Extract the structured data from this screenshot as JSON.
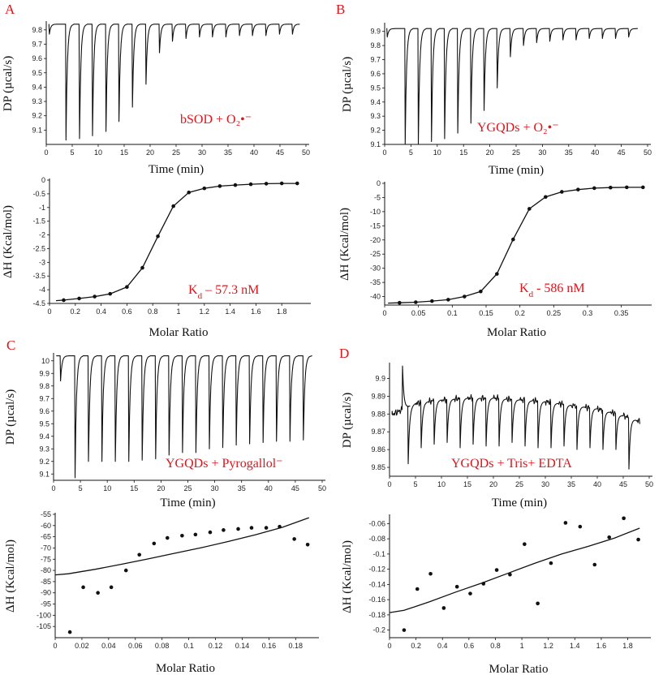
{
  "panels": [
    {
      "id": "A",
      "label": "A"
    },
    {
      "id": "B",
      "label": "B"
    },
    {
      "id": "C",
      "label": "C"
    },
    {
      "id": "D",
      "label": "D"
    }
  ],
  "chart_data": [
    {
      "id": "A-top",
      "type": "line",
      "ylabel": "DP (µcal/s)",
      "xlabel": "Time (min)",
      "annotation": "bSOD + O₂•⁻",
      "xlim": [
        0,
        50
      ],
      "ylim": [
        9.0,
        9.85
      ],
      "xticks": [
        0,
        5,
        10,
        15,
        20,
        25,
        30,
        35,
        40,
        45,
        50
      ],
      "yticks": [
        9.1,
        9.2,
        9.3,
        9.4,
        9.5,
        9.6,
        9.7,
        9.8
      ],
      "baseline": 9.84,
      "peaks": [
        {
          "t": 0.6,
          "min": 9.77
        },
        {
          "t": 3.8,
          "min": 9.03
        },
        {
          "t": 6.4,
          "min": 9.04
        },
        {
          "t": 8.9,
          "min": 9.06
        },
        {
          "t": 11.5,
          "min": 9.09
        },
        {
          "t": 14.0,
          "min": 9.16
        },
        {
          "t": 16.6,
          "min": 9.26
        },
        {
          "t": 19.2,
          "min": 9.42
        },
        {
          "t": 21.8,
          "min": 9.64
        },
        {
          "t": 24.3,
          "min": 9.72
        },
        {
          "t": 26.9,
          "min": 9.74
        },
        {
          "t": 29.5,
          "min": 9.75
        },
        {
          "t": 32.0,
          "min": 9.75
        },
        {
          "t": 34.6,
          "min": 9.75
        },
        {
          "t": 37.2,
          "min": 9.76
        },
        {
          "t": 39.7,
          "min": 9.76
        },
        {
          "t": 42.3,
          "min": 9.76
        },
        {
          "t": 44.9,
          "min": 9.77
        },
        {
          "t": 47.4,
          "min": 9.77
        }
      ]
    },
    {
      "id": "A-bottom",
      "type": "scatter",
      "ylabel": "ΔH (Kcal/mol)",
      "xlabel": "Molar Ratio",
      "annotation": "K_d – 57.3 nM",
      "kd_main": "K",
      "kd_sub": "d",
      "kd_value": " – 57.3 nM",
      "xlim": [
        0,
        2
      ],
      "ylim": [
        -4.5,
        0
      ],
      "xticks": [
        0,
        0.2,
        0.4,
        0.6,
        0.8,
        1,
        1.2,
        1.4,
        1.6,
        1.8
      ],
      "yticks": [
        0,
        -0.5,
        -1,
        -1.5,
        -2,
        -2.5,
        -3,
        -3.5,
        -4,
        -4.5
      ],
      "points": {
        "x": [
          0.11,
          0.23,
          0.35,
          0.47,
          0.6,
          0.72,
          0.84,
          0.96,
          1.08,
          1.2,
          1.32,
          1.44,
          1.56,
          1.68,
          1.8,
          1.92
        ],
        "y": [
          -4.38,
          -4.32,
          -4.25,
          -4.15,
          -3.9,
          -3.2,
          -2.05,
          -0.95,
          -0.45,
          -0.3,
          -0.22,
          -0.18,
          -0.15,
          -0.13,
          -0.12,
          -0.12
        ]
      },
      "fit": {
        "x": [
          0.05,
          0.11,
          0.23,
          0.35,
          0.47,
          0.6,
          0.72,
          0.84,
          0.96,
          1.08,
          1.2,
          1.32,
          1.44,
          1.56,
          1.68,
          1.8,
          1.92
        ],
        "y": [
          -4.4,
          -4.38,
          -4.32,
          -4.25,
          -4.15,
          -3.9,
          -3.2,
          -2.05,
          -0.95,
          -0.45,
          -0.3,
          -0.22,
          -0.18,
          -0.15,
          -0.13,
          -0.12,
          -0.12
        ]
      }
    },
    {
      "id": "B-top",
      "type": "line",
      "ylabel": "DP (µcal/s)",
      "xlabel": "Time (min)",
      "annotation": "YGQDs + O₂•⁻",
      "xlim": [
        0,
        50
      ],
      "ylim": [
        9.1,
        9.95
      ],
      "xticks": [
        0,
        5,
        10,
        15,
        20,
        25,
        30,
        35,
        40,
        45,
        50
      ],
      "yticks": [
        9.1,
        9.2,
        9.3,
        9.4,
        9.5,
        9.6,
        9.7,
        9.8,
        9.9
      ],
      "baseline": 9.92,
      "peaks": [
        {
          "t": 0.5,
          "min": 9.86
        },
        {
          "t": 3.9,
          "min": 9.1
        },
        {
          "t": 6.4,
          "min": 9.1
        },
        {
          "t": 8.9,
          "min": 9.12
        },
        {
          "t": 11.4,
          "min": 9.14
        },
        {
          "t": 13.9,
          "min": 9.18
        },
        {
          "t": 16.4,
          "min": 9.25
        },
        {
          "t": 18.9,
          "min": 9.34
        },
        {
          "t": 21.4,
          "min": 9.5
        },
        {
          "t": 23.9,
          "min": 9.72
        },
        {
          "t": 26.4,
          "min": 9.8
        },
        {
          "t": 28.9,
          "min": 9.82
        },
        {
          "t": 31.4,
          "min": 9.83
        },
        {
          "t": 33.9,
          "min": 9.84
        },
        {
          "t": 36.4,
          "min": 9.84
        },
        {
          "t": 38.9,
          "min": 9.85
        },
        {
          "t": 41.4,
          "min": 9.85
        },
        {
          "t": 43.9,
          "min": 9.85
        },
        {
          "t": 46.4,
          "min": 9.86
        }
      ]
    },
    {
      "id": "B-bottom",
      "type": "scatter",
      "ylabel": "ΔH (Kcal/mol)",
      "xlabel": "Molar Ratio",
      "annotation": "K_d - 586 nM",
      "kd_main": "K",
      "kd_sub": "d",
      "kd_value": " - 586 nM",
      "xlim": [
        0,
        0.39
      ],
      "ylim": [
        -43,
        0
      ],
      "xticks": [
        0,
        0.05,
        0.1,
        0.15,
        0.2,
        0.25,
        0.3,
        0.35
      ],
      "yticks": [
        0,
        -5,
        -10,
        -15,
        -20,
        -25,
        -30,
        -35,
        -40
      ],
      "points": {
        "x": [
          0.022,
          0.046,
          0.07,
          0.094,
          0.118,
          0.142,
          0.166,
          0.19,
          0.214,
          0.238,
          0.262,
          0.286,
          0.31,
          0.334,
          0.358,
          0.382
        ],
        "y": [
          -42.2,
          -42.0,
          -41.6,
          -41.1,
          -40.0,
          -38.2,
          -32.0,
          -19.8,
          -9.0,
          -4.8,
          -3.0,
          -2.2,
          -1.7,
          -1.5,
          -1.4,
          -1.4
        ]
      },
      "fit": {
        "x": [
          0.005,
          0.022,
          0.046,
          0.07,
          0.094,
          0.118,
          0.142,
          0.166,
          0.19,
          0.214,
          0.238,
          0.262,
          0.286,
          0.31,
          0.334,
          0.358,
          0.382
        ],
        "y": [
          -42.3,
          -42.2,
          -42.0,
          -41.6,
          -41.1,
          -40.0,
          -38.2,
          -32.0,
          -19.8,
          -9.0,
          -4.8,
          -3.0,
          -2.2,
          -1.7,
          -1.5,
          -1.4,
          -1.4
        ]
      }
    },
    {
      "id": "C-top",
      "type": "line",
      "ylabel": "DP (µcal/s)",
      "xlabel": "Time (min)",
      "annotation": "YGQDs + Pyrogallol⁻",
      "xlim": [
        0,
        50
      ],
      "ylim": [
        9.05,
        10.05
      ],
      "xticks": [
        0,
        5,
        10,
        15,
        20,
        25,
        30,
        35,
        40,
        45,
        50
      ],
      "yticks": [
        9.1,
        9.2,
        9.3,
        9.4,
        9.5,
        9.6,
        9.7,
        9.8,
        9.9,
        10
      ],
      "baseline": 10.04,
      "peaks": [
        {
          "t": 1.3,
          "min": 9.84
        },
        {
          "t": 4.0,
          "min": 9.07
        },
        {
          "t": 6.5,
          "min": 9.2
        },
        {
          "t": 9.0,
          "min": 9.2
        },
        {
          "t": 11.5,
          "min": 9.2
        },
        {
          "t": 14.0,
          "min": 9.2
        },
        {
          "t": 16.5,
          "min": 9.21
        },
        {
          "t": 19.0,
          "min": 9.22
        },
        {
          "t": 21.5,
          "min": 9.25
        },
        {
          "t": 24.0,
          "min": 9.27
        },
        {
          "t": 26.5,
          "min": 9.27
        },
        {
          "t": 29.0,
          "min": 9.3
        },
        {
          "t": 31.5,
          "min": 9.31
        },
        {
          "t": 34.0,
          "min": 9.33
        },
        {
          "t": 36.5,
          "min": 9.34
        },
        {
          "t": 39.0,
          "min": 9.35
        },
        {
          "t": 41.5,
          "min": 9.36
        },
        {
          "t": 44.0,
          "min": 9.36
        },
        {
          "t": 46.5,
          "min": 9.37
        }
      ]
    },
    {
      "id": "C-bottom",
      "type": "scatter",
      "ylabel": "ΔH (Kcal/mol)",
      "xlabel": "Molar Ratio",
      "xlim": [
        0,
        0.195
      ],
      "ylim": [
        -110,
        -55
      ],
      "xticks": [
        0,
        0.02,
        0.04,
        0.06,
        0.08,
        0.1,
        0.12,
        0.14,
        0.16,
        0.18
      ],
      "yticks": [
        -55,
        -60,
        -65,
        -70,
        -75,
        -80,
        -85,
        -90,
        -95,
        -100,
        -105
      ],
      "points": {
        "x": [
          0.011,
          0.021,
          0.032,
          0.042,
          0.053,
          0.063,
          0.074,
          0.084,
          0.095,
          0.105,
          0.116,
          0.126,
          0.137,
          0.147,
          0.158,
          0.168,
          0.179,
          0.189
        ],
        "y": [
          -107.5,
          -87.5,
          -90,
          -87.5,
          -80,
          -73,
          -68,
          -65.5,
          -64.5,
          -64,
          -63,
          -62,
          -61.5,
          -61,
          -61,
          -60.5,
          -66,
          -68.5
        ]
      },
      "fit": {
        "x": [
          0,
          0.01,
          0.03,
          0.05,
          0.07,
          0.09,
          0.11,
          0.13,
          0.15,
          0.17,
          0.19
        ],
        "y": [
          -82,
          -81.5,
          -79.5,
          -77.2,
          -74.8,
          -72.3,
          -69.8,
          -67.0,
          -64.1,
          -60.8,
          -56.5
        ]
      }
    },
    {
      "id": "D-top",
      "type": "line",
      "ylabel": "DP (µcal/s)",
      "xlabel": "Time (min)",
      "annotation": "YGQDs + Tris+ EDTA",
      "xlim": [
        0,
        50
      ],
      "ylim": [
        9.845,
        9.908
      ],
      "xticks": [
        0,
        5,
        10,
        15,
        20,
        25,
        30,
        35,
        40,
        45,
        50
      ],
      "yticks": [
        9.85,
        9.86,
        9.87,
        9.88,
        9.89,
        9.9
      ],
      "baseline_points": {
        "t": [
          0,
          5,
          10,
          15,
          20,
          25,
          30,
          35,
          40,
          45,
          48
        ],
        "v": [
          9.879,
          9.886,
          9.888,
          9.889,
          9.889,
          9.888,
          9.887,
          9.885,
          9.883,
          9.879,
          9.876
        ]
      },
      "peaks": [
        {
          "t": 2.5,
          "min": 9.907,
          "up": true
        },
        {
          "t": 3.6,
          "min": 9.852
        },
        {
          "t": 6.1,
          "min": 9.861
        },
        {
          "t": 8.6,
          "min": 9.863
        },
        {
          "t": 11.1,
          "min": 9.864
        },
        {
          "t": 13.6,
          "min": 9.861
        },
        {
          "t": 16.1,
          "min": 9.863
        },
        {
          "t": 18.6,
          "min": 9.862
        },
        {
          "t": 21.1,
          "min": 9.862
        },
        {
          "t": 23.6,
          "min": 9.864
        },
        {
          "t": 26.1,
          "min": 9.862
        },
        {
          "t": 28.6,
          "min": 9.861
        },
        {
          "t": 31.1,
          "min": 9.861
        },
        {
          "t": 33.6,
          "min": 9.862
        },
        {
          "t": 36.1,
          "min": 9.86
        },
        {
          "t": 38.6,
          "min": 9.861
        },
        {
          "t": 41.1,
          "min": 9.86
        },
        {
          "t": 43.6,
          "min": 9.86
        },
        {
          "t": 46.1,
          "min": 9.849
        }
      ]
    },
    {
      "id": "D-bottom",
      "type": "scatter",
      "ylabel": "ΔH (Kcal/mol)",
      "xlabel": "Molar Ratio",
      "xlim": [
        0,
        1.95
      ],
      "ylim": [
        -0.21,
        -0.05
      ],
      "xticks": [
        0,
        0.2,
        0.4,
        0.6,
        0.8,
        1,
        1.2,
        1.4,
        1.6,
        1.8
      ],
      "yticks": [
        -0.06,
        -0.08,
        -0.1,
        -0.12,
        -0.14,
        -0.16,
        -0.18,
        -0.2
      ],
      "points": {
        "x": [
          0.11,
          0.21,
          0.31,
          0.41,
          0.51,
          0.61,
          0.71,
          0.81,
          0.91,
          1.02,
          1.12,
          1.22,
          1.33,
          1.44,
          1.55,
          1.66,
          1.77,
          1.88
        ],
        "y": [
          -0.2,
          -0.146,
          -0.126,
          -0.171,
          -0.143,
          -0.152,
          -0.139,
          -0.121,
          -0.127,
          -0.087,
          -0.165,
          -0.112,
          -0.059,
          -0.064,
          -0.114,
          -0.078,
          -0.053,
          -0.081
        ]
      },
      "fit": {
        "x": [
          0.0,
          0.11,
          0.3,
          0.5,
          0.7,
          0.9,
          1.1,
          1.3,
          1.5,
          1.7,
          1.89
        ],
        "y": [
          -0.177,
          -0.174,
          -0.163,
          -0.15,
          -0.138,
          -0.125,
          -0.112,
          -0.1,
          -0.09,
          -0.079,
          -0.066
        ]
      }
    }
  ]
}
